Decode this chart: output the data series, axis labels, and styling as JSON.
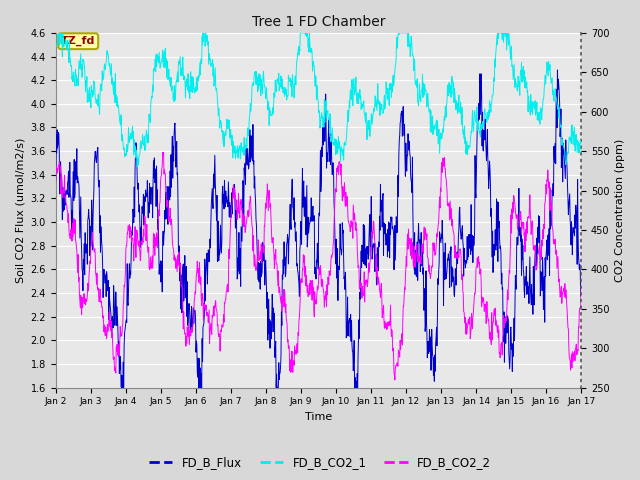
{
  "title": "Tree 1 FD Chamber",
  "xlabel": "Time",
  "ylabel_left": "Soil CO2 Flux (umol/m2/s)",
  "ylabel_right": "CO2 Concentration (ppm)",
  "ylim_left": [
    1.6,
    4.6
  ],
  "ylim_right": [
    250,
    700
  ],
  "yticks_left": [
    1.6,
    1.8,
    2.0,
    2.2,
    2.4,
    2.6,
    2.8,
    3.0,
    3.2,
    3.4,
    3.6,
    3.8,
    4.0,
    4.2,
    4.4,
    4.6
  ],
  "yticks_right": [
    250,
    300,
    350,
    400,
    450,
    500,
    550,
    600,
    650,
    700
  ],
  "xtick_labels": [
    "Jan 2",
    "Jan 3",
    "Jan 4",
    "Jan 5",
    "Jan 6",
    "Jan 7",
    "Jan 8",
    "Jan 9",
    "Jan 10",
    "Jan 11",
    "Jan 12",
    "Jan 13",
    "Jan 14",
    "Jan 15",
    "Jan 16",
    "Jan 17"
  ],
  "color_flux": "#0000CC",
  "color_co2_1": "#00EEEE",
  "color_co2_2": "#FF00FF",
  "legend_labels": [
    "FD_B_Flux",
    "FD_B_CO2_1",
    "FD_B_CO2_2"
  ],
  "annotation_text": "TZ_fd",
  "annotation_box_facecolor": "#FFFFAA",
  "annotation_box_edgecolor": "#AAAA00",
  "annotation_text_color": "#990000",
  "fig_facecolor": "#D8D8D8",
  "plot_facecolor": "#E8E8E8",
  "grid_color": "#FFFFFF",
  "n_points": 1200,
  "seed": 99
}
